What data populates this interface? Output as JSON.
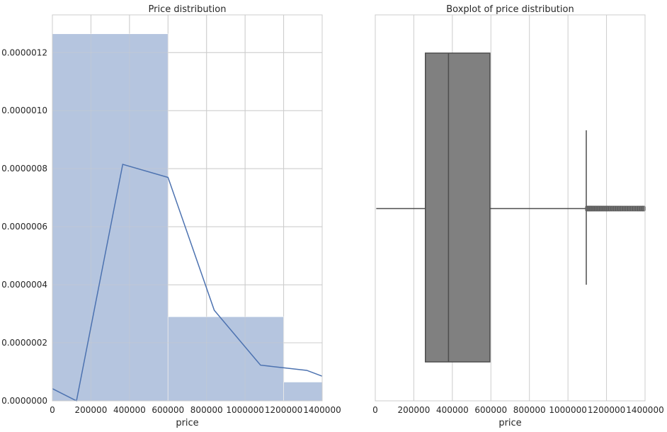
{
  "chart_data": [
    {
      "type": "histogram",
      "title": "Price distribution",
      "xlabel": "price",
      "ylabel": "",
      "xlim": [
        0,
        1400000
      ],
      "ylim": [
        0,
        1.33e-06
      ],
      "grid": true,
      "x_ticks": [
        "0",
        "200000",
        "400000",
        "600000",
        "800000",
        "1000000",
        "1200000",
        "1400000"
      ],
      "y_ticks": [
        "0.0000000",
        "0.0000002",
        "0.0000004",
        "0.0000006",
        "0.0000008",
        "0.0000010",
        "0.0000012"
      ],
      "bins": [
        {
          "x0": 0,
          "x1": 600000,
          "density": 1.265e-06
        },
        {
          "x0": 600000,
          "x1": 1200000,
          "density": 2.9e-07
        },
        {
          "x0": 1200000,
          "x1": 1400000,
          "density": 6.5e-08
        }
      ],
      "kde_line": {
        "x": [
          0,
          125000,
          365000,
          600000,
          840000,
          1080000,
          1320000,
          1400000
        ],
        "y": [
          4.2e-08,
          0.0,
          8.15e-07,
          7.7e-07,
          3.12e-07,
          1.23e-07,
          1.05e-07,
          8.5e-08
        ]
      },
      "colors": {
        "bar": "#b5c5df",
        "line": "#4c72b0"
      }
    },
    {
      "type": "box",
      "title": "Boxplot of price distribution",
      "xlabel": "price",
      "xlim": [
        0,
        1400000
      ],
      "grid": true,
      "x_ticks": [
        "0",
        "200000",
        "400000",
        "600000",
        "800000",
        "1000000",
        "1200000",
        "1400000"
      ],
      "box": {
        "whisker_low": 5000,
        "q1": 260000,
        "median": 380000,
        "q3": 595000,
        "whisker_high": 1095000
      },
      "outliers": [
        1100000,
        1108000,
        1115000,
        1122000,
        1130000,
        1138000,
        1146000,
        1155000,
        1163000,
        1172000,
        1181000,
        1190000,
        1200000,
        1210000,
        1220000,
        1232000,
        1244000,
        1256000,
        1268000,
        1280000,
        1293000,
        1306000,
        1319000,
        1332000,
        1345000,
        1358000,
        1370000,
        1382000,
        1393000
      ],
      "colors": {
        "box": "#808080",
        "edge": "#4d4d4d"
      }
    }
  ]
}
